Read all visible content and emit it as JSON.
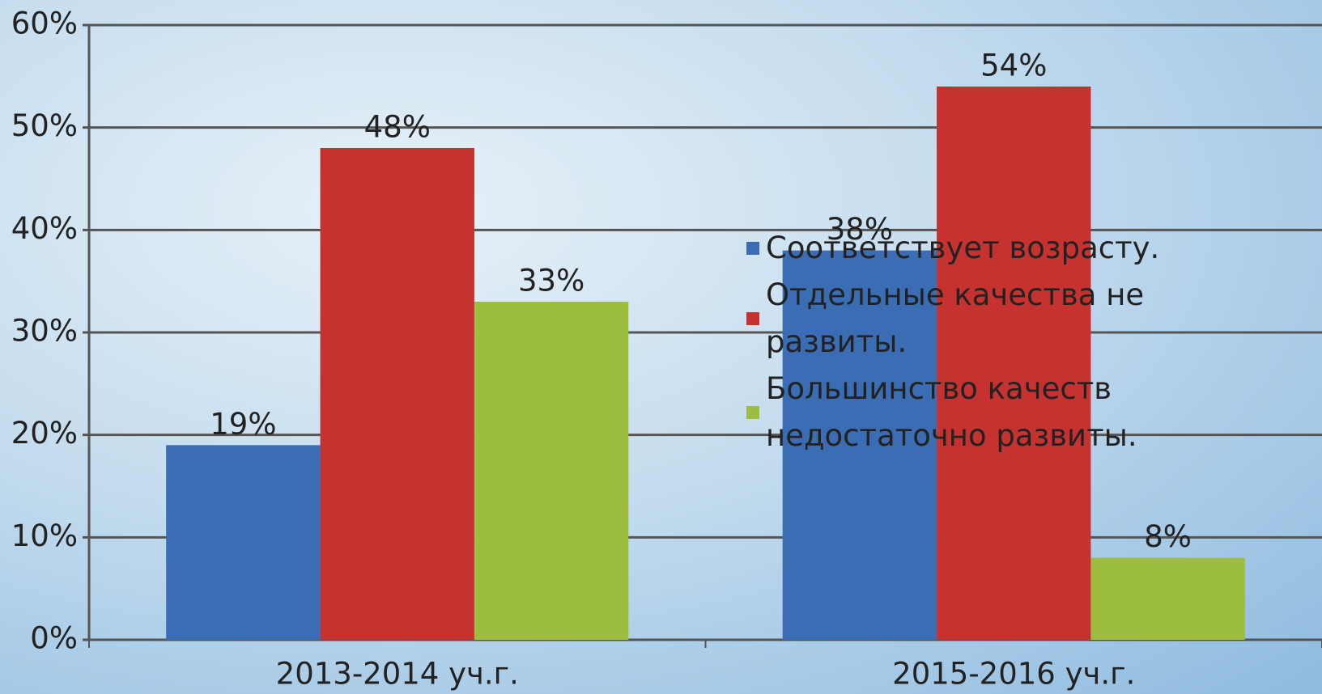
{
  "chart_data": {
    "type": "bar",
    "categories": [
      "2013-2014 уч.г.",
      "2015-2016 уч.г."
    ],
    "series": [
      {
        "name": "Соответствует возрасту.",
        "color": "#3a6db3",
        "values": [
          19,
          38
        ],
        "value_labels": [
          "19%",
          "38%"
        ]
      },
      {
        "name": "Отдельные качества не развиты.",
        "color": "#c5322f",
        "values": [
          48,
          54
        ],
        "value_labels": [
          "48%",
          "54%"
        ]
      },
      {
        "name": "Большинство качеств недостаточно развиты.",
        "color": "#9dbd3f",
        "values": [
          33,
          8
        ],
        "value_labels": [
          "33%",
          "8%"
        ]
      }
    ],
    "ylim": [
      0,
      60
    ],
    "yticks": [
      {
        "value": 0,
        "label": "0%"
      },
      {
        "value": 10,
        "label": "10%"
      },
      {
        "value": 20,
        "label": "20%"
      },
      {
        "value": 30,
        "label": "30%"
      },
      {
        "value": 40,
        "label": "40%"
      },
      {
        "value": 50,
        "label": "50%"
      },
      {
        "value": 60,
        "label": "60%"
      }
    ],
    "grid": true,
    "legend": "right"
  }
}
